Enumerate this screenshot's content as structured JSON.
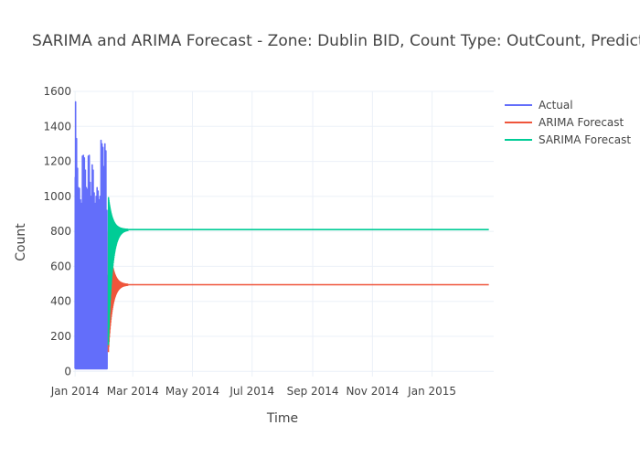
{
  "chart_data": {
    "type": "line",
    "title": "SARIMA and ARIMA Forecast - Zone: Dublin BID, Count Type: OutCount, Prediction Interval: Hourly",
    "xlabel": "Time",
    "ylabel": "Count",
    "x_range": [
      "2013-12-30",
      "2015-03-05"
    ],
    "ylim": [
      -30,
      1600
    ],
    "y_ticks": [
      0,
      200,
      400,
      600,
      800,
      1000,
      1200,
      1400,
      1600
    ],
    "x_ticks": [
      {
        "date": "2014-01-01",
        "label": "Jan 2014"
      },
      {
        "date": "2014-03-01",
        "label": "Mar 2014"
      },
      {
        "date": "2014-05-01",
        "label": "May 2014"
      },
      {
        "date": "2014-07-01",
        "label": "Jul 2014"
      },
      {
        "date": "2014-09-01",
        "label": "Sep 2014"
      },
      {
        "date": "2014-11-01",
        "label": "Nov 2014"
      },
      {
        "date": "2015-01-01",
        "label": "Jan 2015"
      }
    ],
    "grid": true,
    "legend_position": "top-right",
    "series": [
      {
        "name": "Actual",
        "color": "#636efa",
        "x_start": "2014-01-01",
        "x_end": "2014-02-04",
        "daily_peaks": [
          1540,
          1330,
          1160,
          1050,
          1045,
          980,
          960,
          1230,
          1235,
          1220,
          1150,
          1050,
          1040,
          1230,
          1235,
          1080,
          1000,
          1180,
          1150,
          1020,
          960,
          1000,
          1050,
          1030,
          980,
          1000,
          1320,
          1300,
          1280,
          1170,
          1300,
          1260,
          920
        ],
        "daily_trough": 15
      },
      {
        "name": "ARIMA Forecast",
        "color": "#ef553b",
        "x_start": "2014-02-04",
        "x_end": "2015-02-28",
        "initial_range": [
          110,
          810
        ],
        "converges_to": 495
      },
      {
        "name": "SARIMA Forecast",
        "color": "#00cc96",
        "x_start": "2014-02-04",
        "x_end": "2015-02-28",
        "initial_range": [
          150,
          1000
        ],
        "converges_to": 810
      }
    ]
  }
}
